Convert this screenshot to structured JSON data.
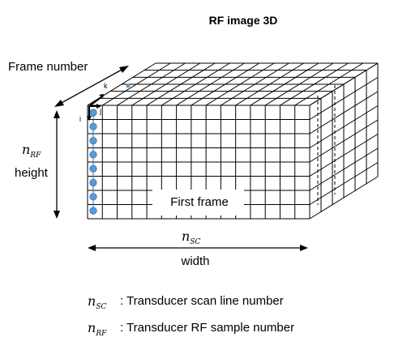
{
  "title": "RF image 3D",
  "labels": {
    "frame_number": "Frame number",
    "k_axis": "k",
    "i_axis": "i",
    "j_axis": "j",
    "height": "height",
    "width": "width",
    "first_frame": "First frame"
  },
  "symbols": {
    "n_base": "n",
    "rf_sub": "RF",
    "sc_sub": "SC"
  },
  "legend": [
    {
      "symbol_sub": "SC",
      "text": ": Transducer scan line number"
    },
    {
      "symbol_sub": "RF",
      "text": ": Transducer RF sample number"
    }
  ],
  "colors": {
    "line": "#000000",
    "dot": "#5b9bd5",
    "dot_stroke": "#2e75b6"
  }
}
